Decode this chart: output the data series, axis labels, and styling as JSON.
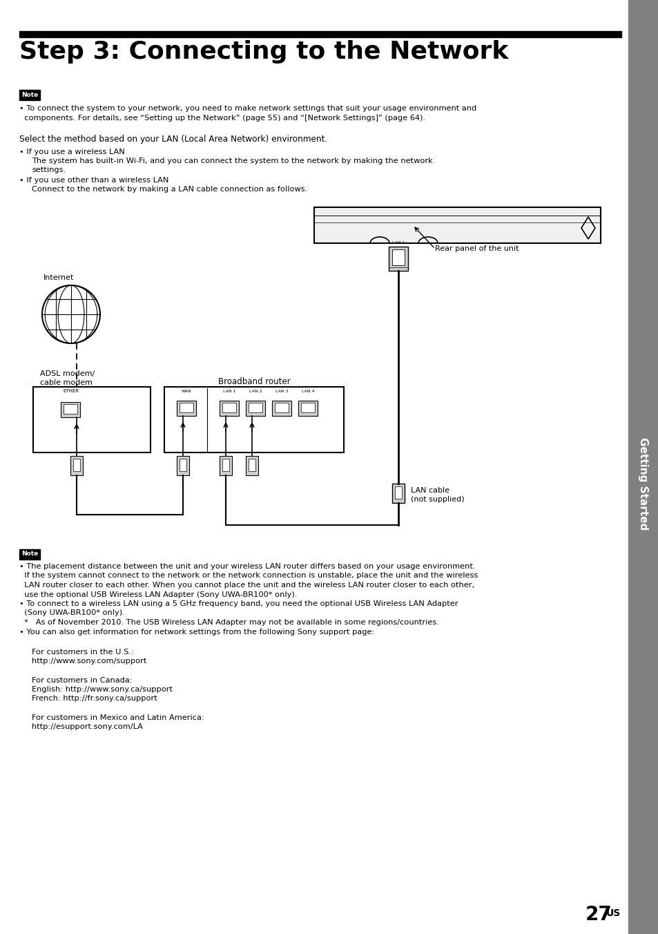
{
  "title": "Step 3: Connecting to the Network",
  "bg_color": "#ffffff",
  "sidebar_color": "#808080",
  "sidebar_text": "Getting Started",
  "title_bar_color": "#000000",
  "note_bg": "#000000",
  "note_text": "Note",
  "body_text_size": 8.2,
  "title_text_size": 26,
  "page_number": "27",
  "page_number_sup": "US",
  "note1_line1": "• To connect the system to your network, you need to make network settings that suit your usage environment and",
  "note1_line2": "  components. For details, see “Setting up the Network” (page 55) and “[Network Settings]” (page 64).",
  "select_text": "Select the method based on your LAN (Local Area Network) environment.",
  "bullet1_head": "• If you use a wireless LAN",
  "bullet1_body1": "The system has built-in Wi-Fi, and you can connect the system to the network by making the network",
  "bullet1_body2": "settings.",
  "bullet2_head": "• If you use other than a wireless LAN",
  "bullet2_body": "Connect to the network by making a LAN cable connection as follows.",
  "label_internet": "Internet",
  "label_adsl1": "ADSL modem/",
  "label_adsl2": "cable modem",
  "label_broadband": "Broadband router",
  "label_rear": "Rear panel of the unit",
  "label_lan1": "LAN cable",
  "label_lan2": "(not supplied)",
  "note2_line1": "• The placement distance between the unit and your wireless LAN router differs based on your usage environment.",
  "note2_line2": "  If the system cannot connect to the network or the network connection is unstable, place the unit and the wireless",
  "note2_line3": "  LAN router closer to each other. When you cannot place the unit and the wireless LAN router closer to each other,",
  "note2_line4": "  use the optional USB Wireless LAN Adapter (Sony UWA-BR100* only).",
  "note2_line5": "• To connect to a wireless LAN using a 5 GHz frequency band, you need the optional USB Wireless LAN Adapter",
  "note2_line6": "  (Sony UWA-BR100* only).",
  "note2_line7": "  *   As of November 2010. The USB Wireless LAN Adapter may not be available in some regions/countries.",
  "note2_line8": "• You can also get information for network settings from the following Sony support page:",
  "supp1a": "For customers in the U.S.:",
  "supp1b": "http://www.sony.com/support",
  "supp2a": "For customers in Canada:",
  "supp2b": "English: http://www.sony.ca/support",
  "supp2c": "French: http://fr.sony.ca/support",
  "supp3a": "For customers in Mexico and Latin America:",
  "supp3b": "http://esupport.sony.com/LA"
}
